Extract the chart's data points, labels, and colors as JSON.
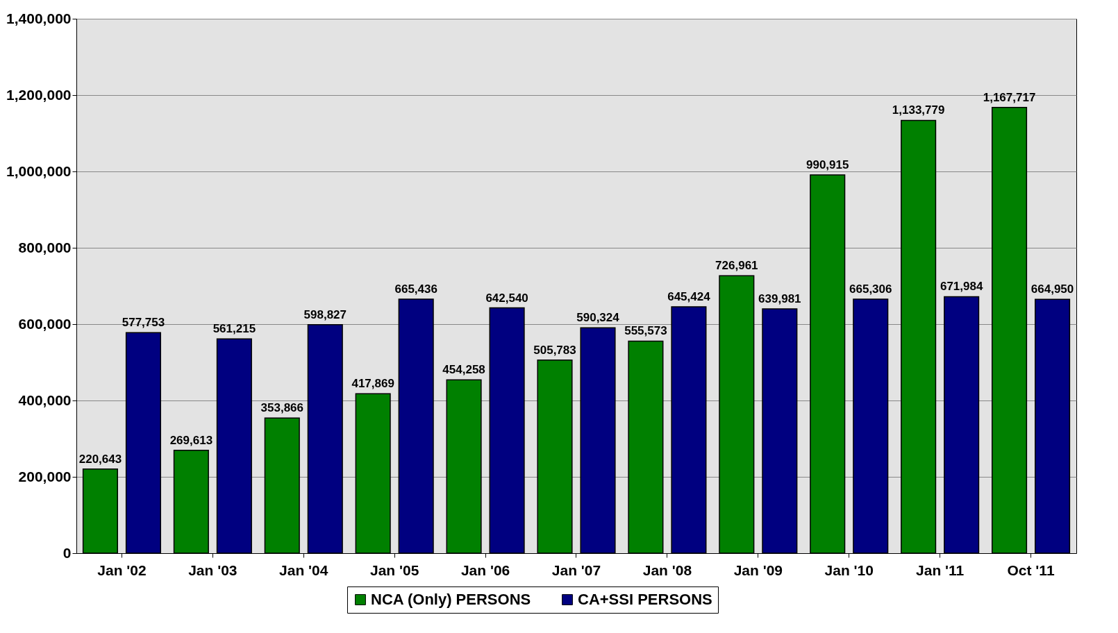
{
  "chart_data": {
    "type": "bar",
    "categories": [
      "Jan '02",
      "Jan '03",
      "Jan '04",
      "Jan '05",
      "Jan '06",
      "Jan '07",
      "Jan '08",
      "Jan '09",
      "Jan '10",
      "Jan '11",
      "Oct '11"
    ],
    "series": [
      {
        "name": "NCA (Only) PERSONS",
        "color": "#008000",
        "values": [
          220643,
          269613,
          353866,
          417869,
          454258,
          505783,
          555573,
          726961,
          990915,
          1133779,
          1167717
        ],
        "value_labels": [
          "220,643",
          "269,613",
          "353,866",
          "417,869",
          "454,258",
          "505,783",
          "555,573",
          "726,961",
          "990,915",
          "1,133,779",
          "1,167,717"
        ]
      },
      {
        "name": "CA+SSI PERSONS",
        "color": "#000080",
        "values": [
          577753,
          561215,
          598827,
          665436,
          642540,
          590324,
          645424,
          639981,
          665306,
          671984,
          664950
        ],
        "value_labels": [
          "577,753",
          "561,215",
          "598,827",
          "665,436",
          "642,540",
          "590,324",
          "645,424",
          "639,981",
          "665,306",
          "671,984",
          "664,950"
        ]
      }
    ],
    "ylim": [
      0,
      1400000
    ],
    "yticks": [
      0,
      {
        "value": 200000,
        "label": "200,000"
      },
      {
        "value": 400000,
        "label": "400,000"
      },
      {
        "value": 600000,
        "label": "600,000"
      },
      {
        "value": 800000,
        "label": "800,000"
      },
      {
        "value": 1000000,
        "label": "1,000,000"
      },
      {
        "value": 1200000,
        "label": "1,200,000"
      },
      {
        "value": 1400000,
        "label": "1,400,000"
      }
    ],
    "grid": "y",
    "legend": "bottom"
  }
}
